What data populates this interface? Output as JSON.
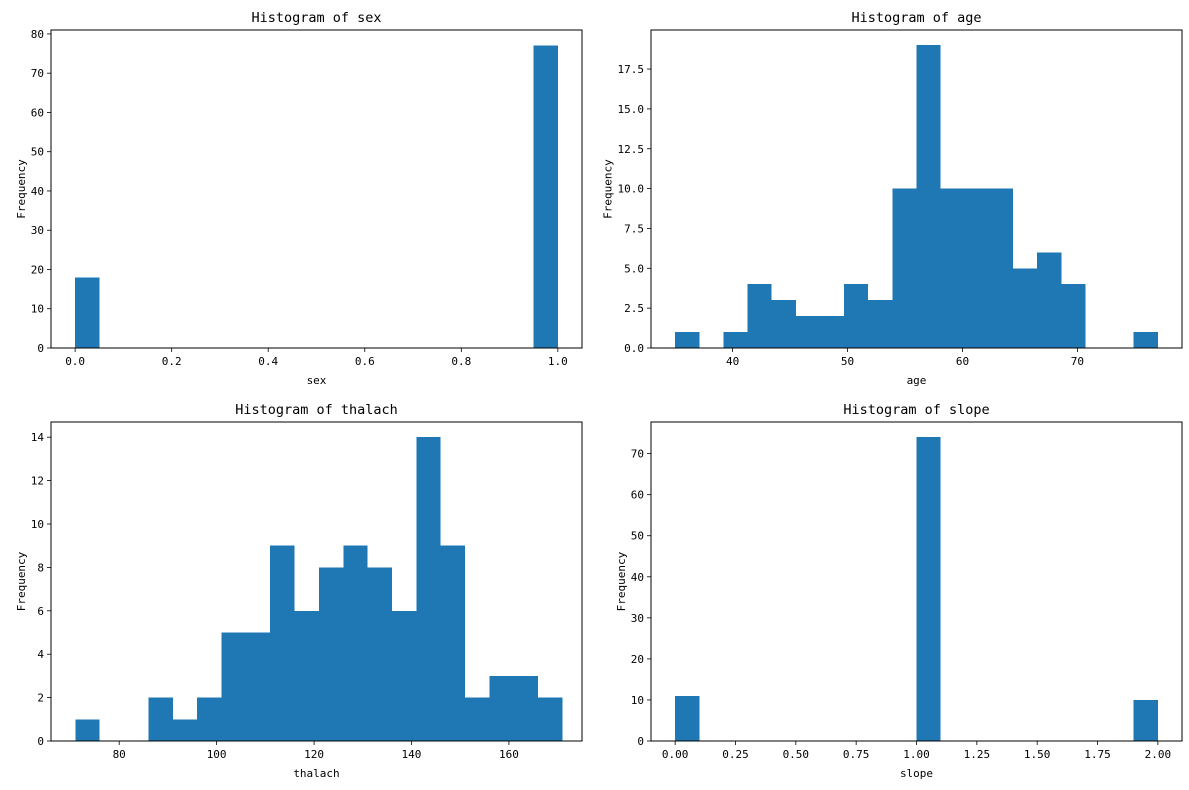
{
  "chart_data": [
    {
      "type": "histogram",
      "title": "Histogram of sex",
      "xlabel": "sex",
      "ylabel": "Frequency",
      "xlim": [
        -0.05,
        1.05
      ],
      "ylim": [
        0,
        81
      ],
      "xticks": [
        0.0,
        0.2,
        0.4,
        0.6,
        0.8,
        1.0
      ],
      "xtick_labels": [
        "0.0",
        "0.2",
        "0.4",
        "0.6",
        "0.8",
        "1.0"
      ],
      "yticks": [
        0,
        10,
        20,
        30,
        40,
        50,
        60,
        70,
        80
      ],
      "ytick_labels": [
        "0",
        "10",
        "20",
        "30",
        "40",
        "50",
        "60",
        "70",
        "80"
      ],
      "bin_edges": [
        0.0,
        0.05,
        0.1,
        0.15,
        0.2,
        0.25,
        0.3,
        0.35,
        0.4,
        0.45,
        0.5,
        0.55,
        0.6,
        0.65,
        0.7,
        0.75,
        0.8,
        0.85,
        0.9,
        0.95,
        1.0
      ],
      "counts": [
        18,
        0,
        0,
        0,
        0,
        0,
        0,
        0,
        0,
        0,
        0,
        0,
        0,
        0,
        0,
        0,
        0,
        0,
        0,
        77
      ],
      "color": "#1f77b4"
    },
    {
      "type": "histogram",
      "title": "Histogram of age",
      "xlabel": "age",
      "ylabel": "Frequency",
      "xlim": [
        32.9,
        79.1
      ],
      "ylim": [
        0,
        19.95
      ],
      "xticks": [
        40,
        50,
        60,
        70
      ],
      "xtick_labels": [
        "40",
        "50",
        "60",
        "70"
      ],
      "yticks": [
        0,
        2.5,
        5,
        7.5,
        10,
        12.5,
        15,
        17.5
      ],
      "ytick_labels": [
        "0.0",
        "2.5",
        "5.0",
        "7.5",
        "10.0",
        "12.5",
        "15.0",
        "17.5"
      ],
      "bin_edges": [
        35.0,
        37.1,
        39.2,
        41.3,
        43.4,
        45.5,
        47.6,
        49.7,
        51.8,
        53.9,
        56.0,
        58.1,
        60.2,
        62.3,
        64.4,
        66.5,
        68.6,
        70.7,
        72.8,
        74.9,
        77.0
      ],
      "counts": [
        1,
        0,
        1,
        4,
        3,
        2,
        2,
        4,
        3,
        10,
        19,
        10,
        10,
        10,
        5,
        6,
        4,
        0,
        0,
        1
      ],
      "color": "#1f77b4"
    },
    {
      "type": "histogram",
      "title": "Histogram of thalach",
      "xlabel": "thalach",
      "ylabel": "Frequency",
      "xlim": [
        66.0,
        175.0
      ],
      "ylim": [
        0,
        14.7
      ],
      "xticks": [
        80,
        100,
        120,
        140,
        160
      ],
      "xtick_labels": [
        "80",
        "100",
        "120",
        "140",
        "160"
      ],
      "yticks": [
        0,
        2,
        4,
        6,
        8,
        10,
        12,
        14
      ],
      "ytick_labels": [
        "0",
        "2",
        "4",
        "6",
        "8",
        "10",
        "12",
        "14"
      ],
      "bin_edges": [
        71.0,
        76.0,
        81.0,
        86.0,
        91.0,
        96.0,
        101.0,
        106.0,
        111.0,
        116.0,
        121.0,
        126.0,
        131.0,
        136.0,
        141.0,
        146.0,
        151.0,
        156.0,
        161.0,
        166.0,
        171.0
      ],
      "counts": [
        1,
        0,
        0,
        2,
        1,
        2,
        5,
        5,
        9,
        6,
        8,
        9,
        8,
        6,
        14,
        9,
        2,
        3,
        3,
        2
      ],
      "color": "#1f77b4"
    },
    {
      "type": "histogram",
      "title": "Histogram of slope",
      "xlabel": "slope",
      "ylabel": "Frequency",
      "xlim": [
        -0.1,
        2.1
      ],
      "ylim": [
        0,
        77.7
      ],
      "xticks": [
        0.0,
        0.25,
        0.5,
        0.75,
        1.0,
        1.25,
        1.5,
        1.75,
        2.0
      ],
      "xtick_labels": [
        "0.00",
        "0.25",
        "0.50",
        "0.75",
        "1.00",
        "1.25",
        "1.50",
        "1.75",
        "2.00"
      ],
      "yticks": [
        0,
        10,
        20,
        30,
        40,
        50,
        60,
        70
      ],
      "ytick_labels": [
        "0",
        "10",
        "20",
        "30",
        "40",
        "50",
        "60",
        "70"
      ],
      "bin_edges": [
        0.0,
        0.1,
        0.2,
        0.3,
        0.4,
        0.5,
        0.6,
        0.7,
        0.8,
        0.9,
        1.0,
        1.1,
        1.2,
        1.3,
        1.4,
        1.5,
        1.6,
        1.7,
        1.8,
        1.9,
        2.0
      ],
      "counts": [
        11,
        0,
        0,
        0,
        0,
        0,
        0,
        0,
        0,
        0,
        74,
        0,
        0,
        0,
        0,
        0,
        0,
        0,
        0,
        10
      ],
      "color": "#1f77b4"
    }
  ]
}
